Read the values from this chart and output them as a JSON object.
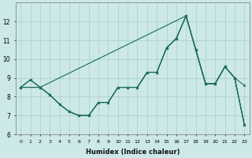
{
  "xlabel": "Humidex (Indice chaleur)",
  "background_color": "#cce8e8",
  "grid_color": "#aacccc",
  "line_color": "#1a6b5a",
  "xlim": [
    -0.5,
    23.5
  ],
  "ylim": [
    6,
    13.0
  ],
  "yticks": [
    6,
    7,
    8,
    9,
    10,
    11,
    12
  ],
  "xticks": [
    0,
    1,
    2,
    3,
    4,
    5,
    6,
    7,
    8,
    9,
    10,
    11,
    12,
    13,
    14,
    15,
    16,
    17,
    18,
    19,
    20,
    21,
    22,
    23
  ],
  "lines": [
    {
      "x": [
        0,
        1,
        2,
        3,
        4,
        5,
        6,
        7,
        8,
        9,
        10,
        11,
        12,
        13,
        14,
        15,
        16,
        17,
        18,
        19,
        20,
        21,
        22,
        23
      ],
      "y": [
        8.5,
        8.9,
        8.5,
        8.1,
        7.6,
        7.2,
        7.0,
        7.0,
        7.7,
        7.7,
        8.5,
        8.5,
        8.5,
        9.3,
        9.3,
        10.6,
        11.1,
        12.3,
        10.5,
        8.7,
        8.7,
        9.6,
        9.0,
        6.5
      ]
    },
    {
      "x": [
        0,
        1,
        2,
        3,
        4,
        5,
        6,
        7,
        8,
        9,
        10,
        11,
        12,
        13,
        14,
        15,
        16,
        17,
        18,
        19,
        20,
        21,
        22,
        23
      ],
      "y": [
        8.5,
        8.9,
        8.5,
        8.1,
        7.6,
        7.2,
        7.0,
        7.0,
        7.7,
        7.7,
        8.5,
        8.5,
        8.5,
        9.3,
        9.3,
        10.6,
        11.1,
        12.3,
        10.5,
        8.7,
        8.7,
        9.6,
        9.0,
        8.6
      ]
    },
    {
      "x": [
        0,
        2,
        3,
        4,
        5,
        6,
        7,
        8,
        9,
        10,
        11,
        12,
        13,
        14,
        15,
        16,
        17,
        18,
        19,
        20,
        21,
        22,
        23
      ],
      "y": [
        8.5,
        8.5,
        8.1,
        7.6,
        7.2,
        7.0,
        7.0,
        7.7,
        7.7,
        8.5,
        8.5,
        8.5,
        9.3,
        9.3,
        10.6,
        11.1,
        12.3,
        10.5,
        8.7,
        8.7,
        9.6,
        9.0,
        6.5
      ]
    },
    {
      "x": [
        0,
        2,
        17,
        18,
        19,
        20,
        21,
        22,
        23
      ],
      "y": [
        8.5,
        8.5,
        12.3,
        10.5,
        8.7,
        8.7,
        9.6,
        9.0,
        6.5
      ]
    }
  ]
}
